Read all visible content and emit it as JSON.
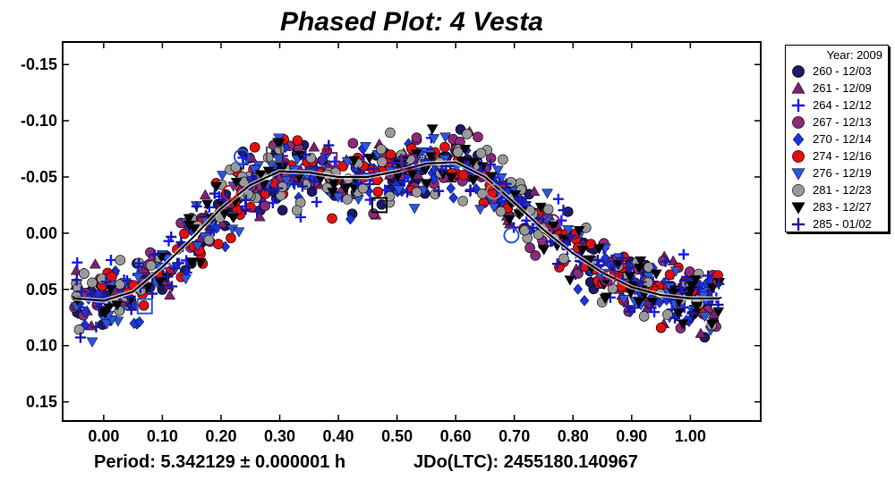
{
  "chart_data": {
    "type": "scatter",
    "title": "Phased Plot: 4 Vesta",
    "xlabel": "",
    "ylabel": "",
    "xlim": [
      -0.07,
      1.12
    ],
    "ylim": [
      -0.17,
      0.167
    ],
    "y_inverted": true,
    "x_ticks": [
      0.0,
      0.1,
      0.2,
      0.3,
      0.4,
      0.5,
      0.6,
      0.7,
      0.8,
      0.9,
      1.0
    ],
    "x_tick_labels": [
      "0.00",
      "0.10",
      "0.20",
      "0.30",
      "0.40",
      "0.50",
      "0.60",
      "0.70",
      "0.80",
      "0.90",
      "1.00"
    ],
    "y_ticks": [
      -0.15,
      -0.1,
      -0.05,
      0.0,
      0.05,
      0.1,
      0.15
    ],
    "y_tick_labels": [
      "-0.15",
      "-0.10",
      "-0.05",
      "0.00",
      "0.05",
      "0.10",
      "0.15"
    ],
    "grid": false,
    "legend_position": "outside-right",
    "legend_title": "Year: 2009",
    "fit_curve": {
      "x": [
        -0.05,
        0.0,
        0.05,
        0.1,
        0.15,
        0.2,
        0.25,
        0.3,
        0.35,
        0.4,
        0.45,
        0.5,
        0.55,
        0.6,
        0.65,
        0.7,
        0.75,
        0.8,
        0.85,
        0.9,
        0.95,
        1.0,
        1.05
      ],
      "y": [
        0.058,
        0.06,
        0.052,
        0.03,
        0.005,
        -0.022,
        -0.043,
        -0.055,
        -0.054,
        -0.05,
        -0.05,
        -0.055,
        -0.062,
        -0.063,
        -0.05,
        -0.027,
        -0.003,
        0.018,
        0.035,
        0.048,
        0.055,
        0.058,
        0.058
      ]
    },
    "scatter_spread": 0.015,
    "points_per_series": 110,
    "series": [
      {
        "name": "260 - 12/03",
        "marker": "circle",
        "color": "#1a1a66"
      },
      {
        "name": "261 - 12/09",
        "marker": "triangle-up",
        "color": "#7a1f6e"
      },
      {
        "name": "264 - 12/12",
        "marker": "plus",
        "color": "#1a1aff"
      },
      {
        "name": "267 - 12/13",
        "marker": "circle",
        "color": "#8b2a7a"
      },
      {
        "name": "270 - 12/14",
        "marker": "diamond",
        "color": "#1a33dd"
      },
      {
        "name": "274 - 12/16",
        "marker": "circle",
        "color": "#e01010"
      },
      {
        "name": "276 - 12/19",
        "marker": "triangle-down",
        "color": "#2a55dd"
      },
      {
        "name": "281 - 12/23",
        "marker": "circle",
        "color": "#999999"
      },
      {
        "name": "283 - 12/27",
        "marker": "triangle-down",
        "color": "#000000"
      },
      {
        "name": "285 - 01/02",
        "marker": "plus",
        "color": "#1a1aaa"
      }
    ],
    "comparison_markers": [
      {
        "x": 0.07,
        "y": 0.065,
        "shape": "square",
        "color": "#2a55dd"
      },
      {
        "x": 0.29,
        "y": -0.07,
        "shape": "square",
        "color": "#555555"
      },
      {
        "x": 0.385,
        "y": -0.065,
        "shape": "square",
        "color": "#7a1f6e"
      },
      {
        "x": 0.47,
        "y": -0.025,
        "shape": "square",
        "color": "#000000"
      },
      {
        "x": 0.52,
        "y": -0.063,
        "shape": "square",
        "color": "#7a1f6e"
      },
      {
        "x": 0.215,
        "y": -0.036,
        "shape": "circle",
        "color": "#e01010"
      },
      {
        "x": 0.235,
        "y": -0.068,
        "shape": "circle",
        "color": "#2a55dd"
      },
      {
        "x": 0.665,
        "y": -0.037,
        "shape": "circle",
        "color": "#888888"
      },
      {
        "x": 0.695,
        "y": 0.002,
        "shape": "circle",
        "color": "#2a55dd"
      },
      {
        "x": 0.765,
        "y": -0.01,
        "shape": "circle",
        "color": "#7a1f6e"
      },
      {
        "x": 0.86,
        "y": 0.04,
        "shape": "circle",
        "color": "#7a1f6e"
      }
    ]
  },
  "footer": {
    "period": "Period: 5.342129 ± 0.000001 h",
    "jd": "JDo(LTC): 2455180.140967"
  }
}
